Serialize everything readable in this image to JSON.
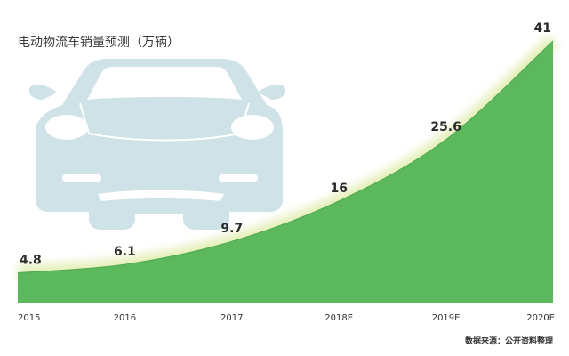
{
  "chart_data": {
    "type": "area",
    "title": "电动物流车销量预测（万辆）",
    "categories": [
      "2015",
      "2016",
      "2017",
      "2018E",
      "2019E",
      "2020E"
    ],
    "series": [
      {
        "values": [
          4.8,
          6.1,
          9.7,
          16,
          25.6,
          41
        ]
      }
    ],
    "value_labels": [
      "4.8",
      "6.1",
      "9.7",
      "16",
      "25.6",
      "41"
    ],
    "source": "数据来源：公开资料整理",
    "ylim": [
      0,
      41
    ],
    "grid": false,
    "colors": {
      "area_fill": "#5cb85c",
      "glow": "#e4efb8",
      "car_silhouette": "#cfe2e7"
    }
  }
}
